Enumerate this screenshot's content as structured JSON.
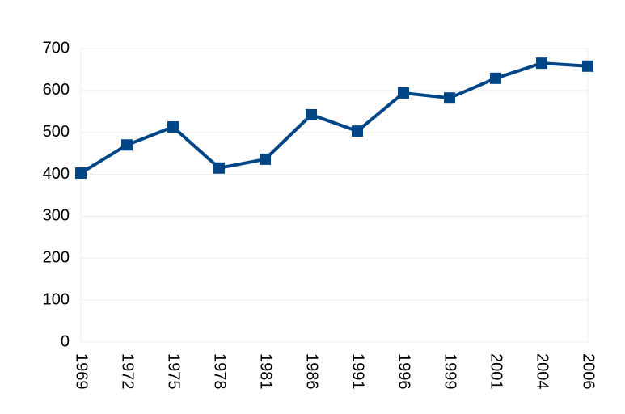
{
  "chart_data": {
    "type": "line",
    "categories": [
      "1969",
      "1972",
      "1975",
      "1978",
      "1981",
      "1986",
      "1991",
      "1996",
      "1999",
      "2001",
      "2004",
      "2006"
    ],
    "values": [
      403,
      470,
      513,
      415,
      436,
      542,
      503,
      594,
      582,
      629,
      665,
      658
    ],
    "color": "#004586",
    "ylim": [
      0,
      700
    ],
    "yticks": [
      0,
      100,
      200,
      300,
      400,
      500,
      600,
      700
    ],
    "grid": true
  }
}
